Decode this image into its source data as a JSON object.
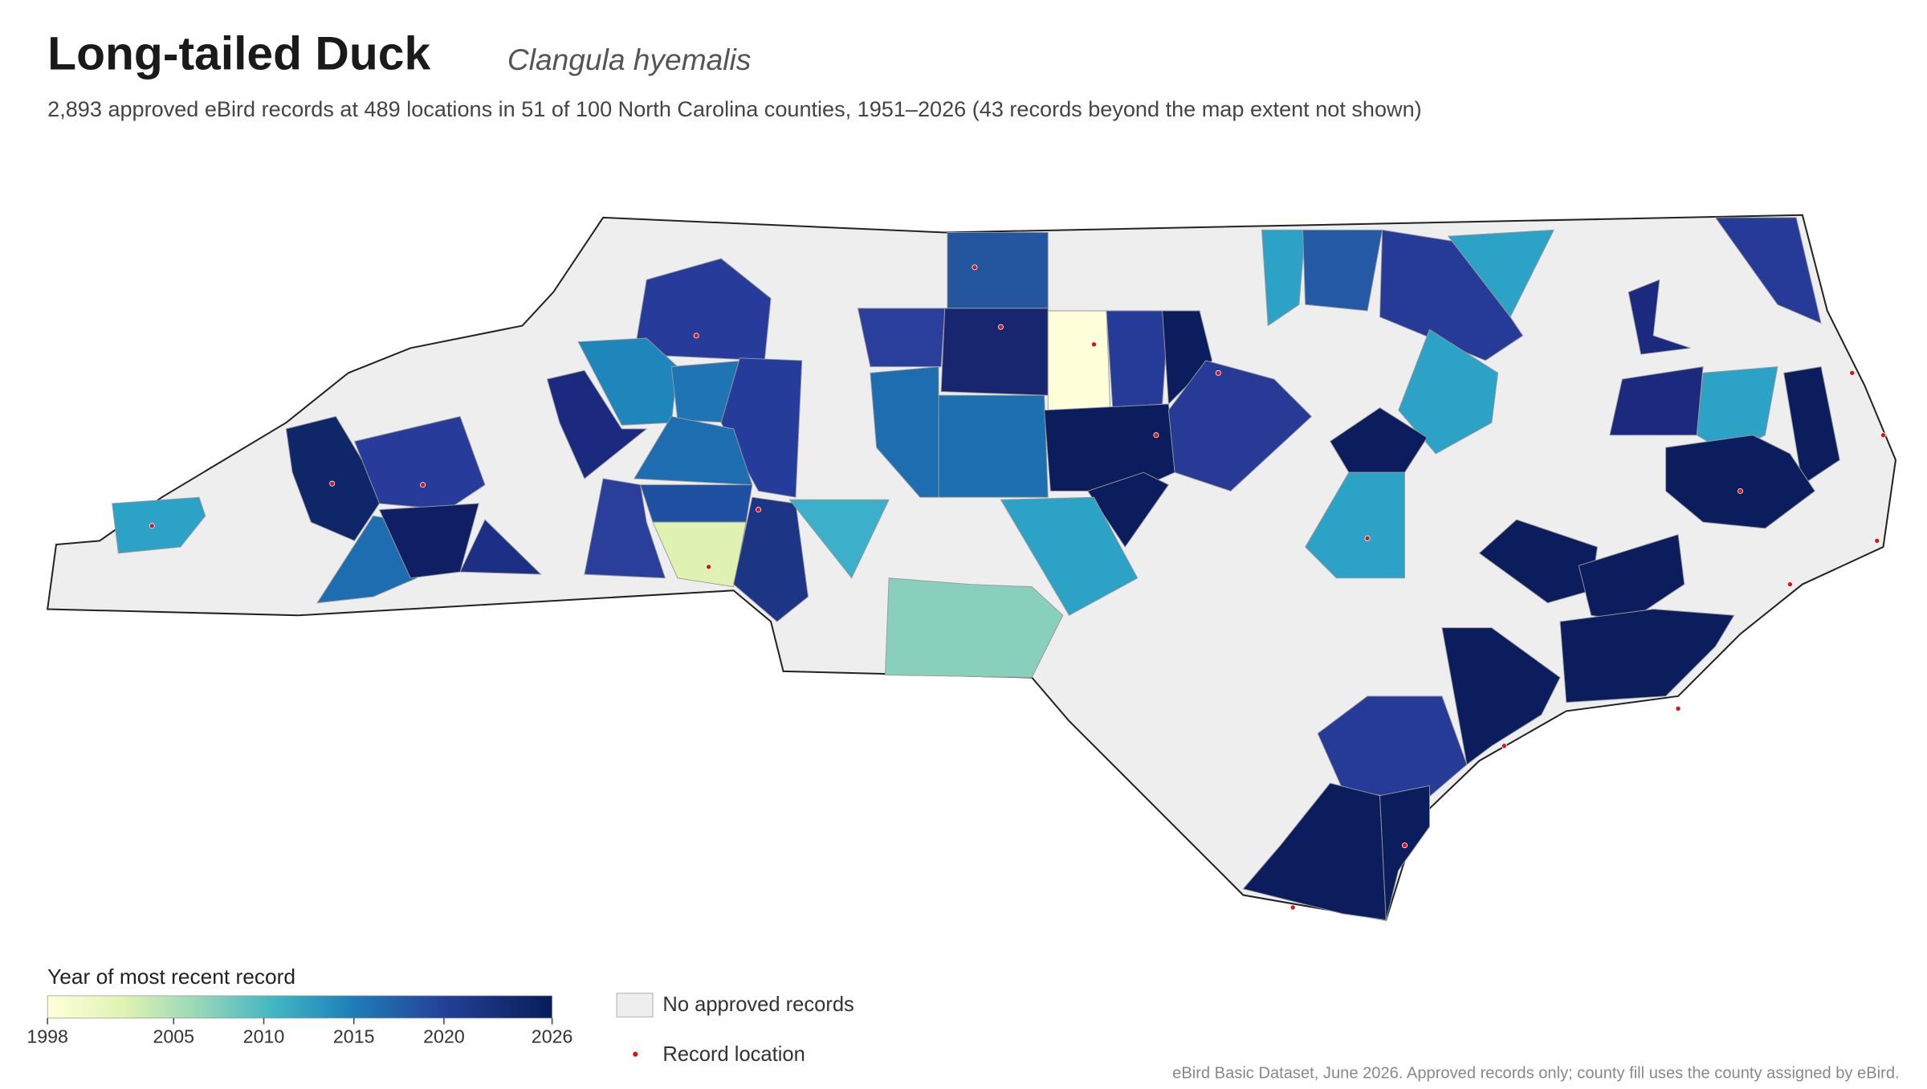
{
  "header": {
    "title": "Long-tailed Duck",
    "species": "Clangula hyemalis",
    "subtitle": "2,893 approved eBird records at 489 locations in 51 of 100 North Carolina counties, 1951–2026 (43 records beyond the map extent not shown)"
  },
  "legend": {
    "title": "Year of most recent record",
    "range": [
      1998,
      2026
    ],
    "ticks": [
      1998,
      2005,
      2010,
      2015,
      2020,
      2026
    ],
    "items": [
      "No approved records",
      "Record location"
    ]
  },
  "footer": "eBird Basic Dataset, June 2026. Approved records only; county fill uses the county assigned by eBird."
}
